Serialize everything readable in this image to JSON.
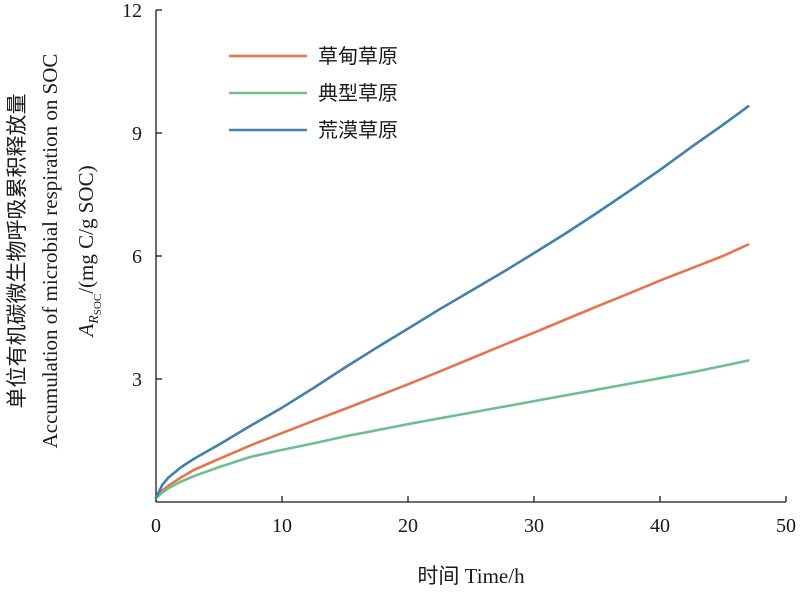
{
  "chart_data": {
    "type": "line",
    "title": "",
    "xlabel": "时间 Time/h",
    "ylabel_lines": [
      "单位有机碳微生物呼吸累积释放量",
      "Accumulation of microbial respiration on SOC"
    ],
    "ylabel_symbol": {
      "base": "A",
      "sub1": "R",
      "sub2": "SOC",
      "unit": "/(mg C/g SOC)"
    },
    "xlim": [
      0,
      50
    ],
    "ylim": [
      0,
      12
    ],
    "x_ticks": [
      0,
      10,
      20,
      30,
      40,
      50
    ],
    "y_ticks": [
      3,
      6,
      9,
      12
    ],
    "grid": false,
    "legend_position": "top-left",
    "series": [
      {
        "name": "草甸草原",
        "color": "#e8724e",
        "x": [
          0,
          0.5,
          1,
          2,
          3,
          5,
          7.5,
          10,
          12.5,
          15,
          17.5,
          20,
          22.5,
          25,
          27.5,
          30,
          32.5,
          35,
          37.5,
          40,
          42.5,
          45,
          47
        ],
        "values": [
          0.1,
          0.28,
          0.4,
          0.6,
          0.78,
          1.05,
          1.38,
          1.68,
          1.98,
          2.27,
          2.57,
          2.87,
          3.18,
          3.5,
          3.82,
          4.13,
          4.45,
          4.77,
          5.08,
          5.4,
          5.7,
          6.0,
          6.28
        ]
      },
      {
        "name": "典型草原",
        "color": "#6cc08e",
        "x": [
          0,
          0.5,
          1,
          2,
          3,
          5,
          7.5,
          10,
          12.5,
          15,
          17.5,
          20,
          22.5,
          25,
          27.5,
          30,
          32.5,
          35,
          37.5,
          40,
          42.5,
          45,
          47
        ],
        "values": [
          0.1,
          0.23,
          0.34,
          0.5,
          0.63,
          0.85,
          1.1,
          1.27,
          1.43,
          1.6,
          1.75,
          1.9,
          2.04,
          2.18,
          2.32,
          2.46,
          2.6,
          2.74,
          2.88,
          3.02,
          3.16,
          3.32,
          3.45
        ]
      },
      {
        "name": "荒漠草原",
        "color": "#3f82ad",
        "x": [
          0,
          0.5,
          1,
          2,
          3,
          5,
          7.5,
          10,
          12.5,
          15,
          17.5,
          20,
          22.5,
          25,
          27.5,
          30,
          32.5,
          35,
          37.5,
          40,
          42.5,
          45,
          47
        ],
        "values": [
          0.1,
          0.42,
          0.6,
          0.85,
          1.05,
          1.4,
          1.86,
          2.3,
          2.78,
          3.28,
          3.76,
          4.23,
          4.7,
          5.15,
          5.6,
          6.07,
          6.55,
          7.05,
          7.57,
          8.1,
          8.66,
          9.2,
          9.65
        ]
      }
    ]
  }
}
